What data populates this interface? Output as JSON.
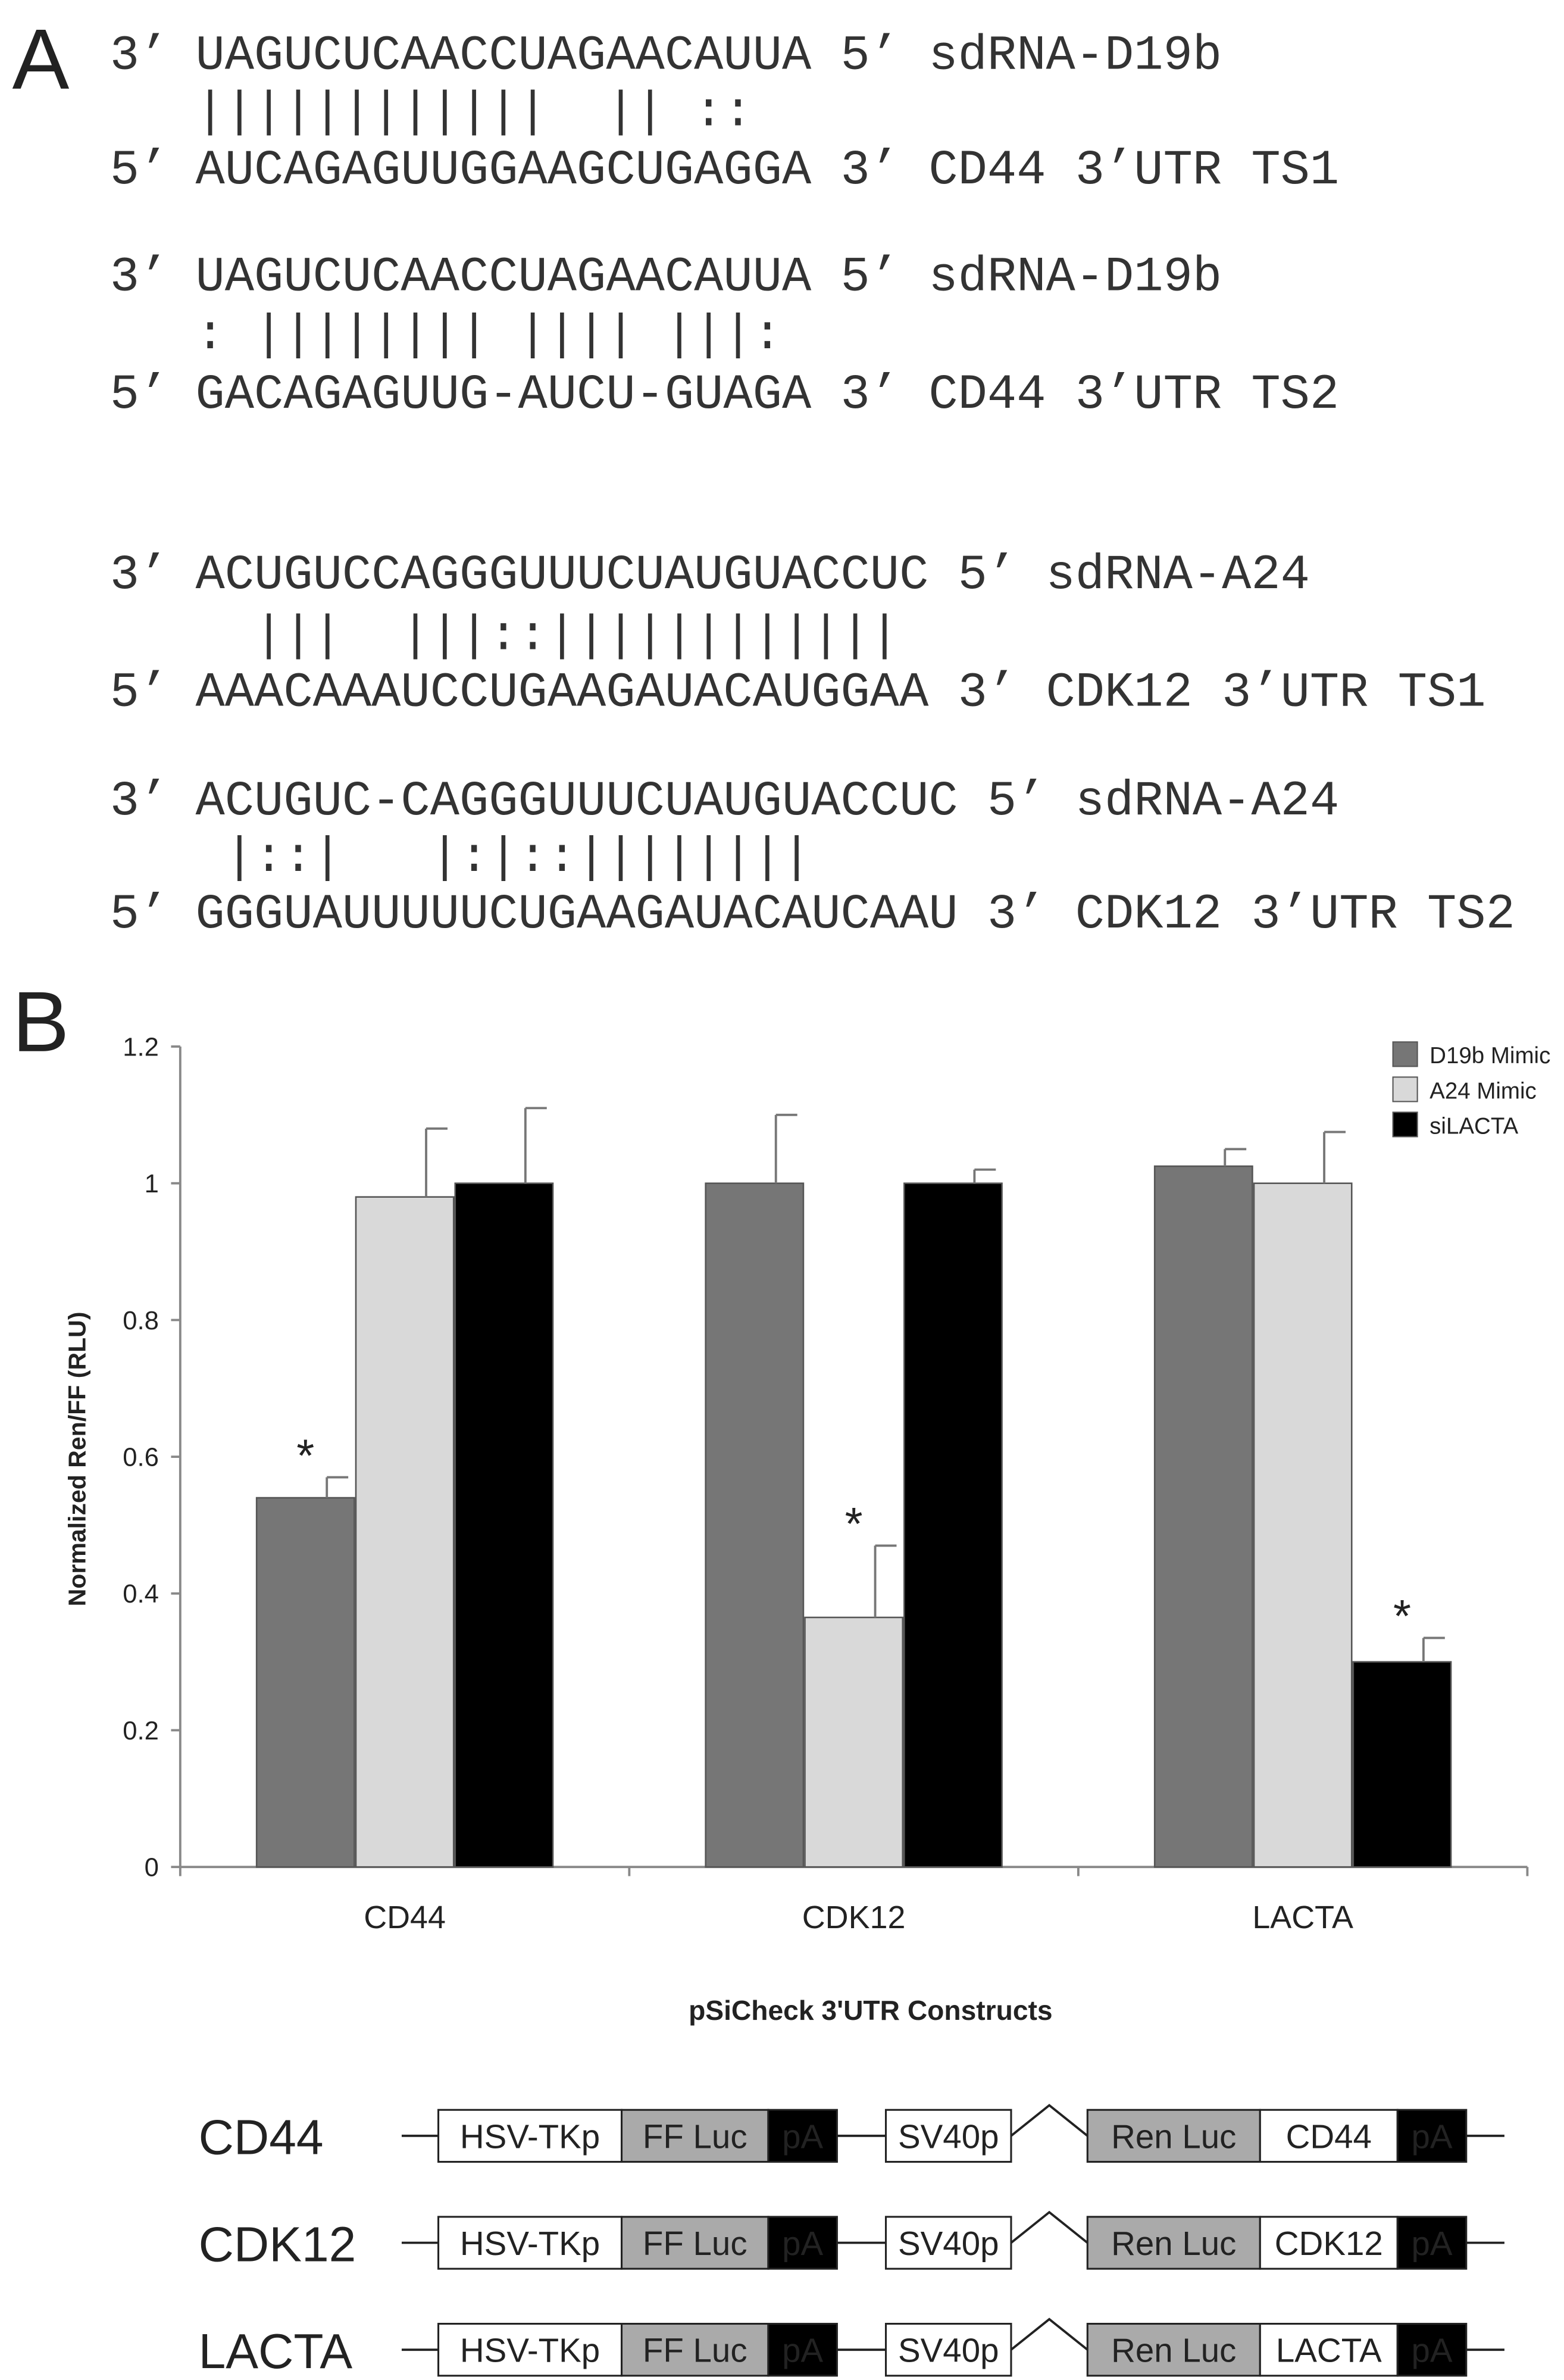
{
  "panel_a": {
    "label": "A",
    "alignments": [
      {
        "top_left": "3’",
        "top_seq": "UAGUCUCAACCUAGAACAUUA",
        "top_right": "5’",
        "top_name": "sdRNA-D19b",
        "match": "||||||||||||  || ::",
        "bottom_left": "5’",
        "bottom_seq": "AUCAGAGUUGGAAGCUGAGGA",
        "bottom_right": "3’",
        "bottom_name": "CD44 3’UTR TS1"
      },
      {
        "top_left": "3’",
        "top_seq": "UAGUCUCAACCUAGAACAUUA",
        "top_right": "5’",
        "top_name": "sdRNA-D19b",
        "match": ": |||||||| |||| |||:",
        "bottom_left": "5’",
        "bottom_seq": "GACAGAGUUG-AUCU-GUAGA",
        "bottom_right": "3’",
        "bottom_name": "CD44 3’UTR TS2"
      },
      {
        "top_left": "3’",
        "top_seq": "ACUGUCCAGGGUUUCUAUGUACCUC",
        "top_right": "5’",
        "top_name": "sdRNA-A24",
        "match": "  |||  |||::||||||||||||",
        "bottom_left": "5’",
        "bottom_seq": "AAACAAAUCCUGAAGAUACAUGGAA",
        "bottom_right": "3’",
        "bottom_name": "CDK12 3’UTR TS1"
      },
      {
        "top_left": "3’",
        "top_seq": "ACUGUC-CAGGGUUUCUAUGUACCUC",
        "top_right": "5’",
        "top_name": "sdRNA-A24",
        "match": " |::|   |:|::||||||||",
        "bottom_left": "5’",
        "bottom_seq": "GGGUAUUUUUCUGAAGAUACAUCAAU",
        "bottom_right": "3’",
        "bottom_name": "CDK12 3’UTR TS2"
      }
    ]
  },
  "panel_b_label": "B",
  "chart_data": {
    "type": "bar",
    "y_label": "Normalized Ren/FF (RLU)",
    "x_label": "pSiCheck 3'UTR Constructs",
    "categories": [
      "CD44",
      "CDK12",
      "LACTA"
    ],
    "series": [
      {
        "name": "D19b Mimic",
        "color": "#767676",
        "values": [
          0.54,
          1.0,
          1.025
        ],
        "errors": [
          0.03,
          0.1,
          0.025
        ]
      },
      {
        "name": "A24 Mimic",
        "color": "#d9d9d9",
        "values": [
          0.98,
          0.365,
          1.0
        ],
        "errors": [
          0.1,
          0.105,
          0.075
        ]
      },
      {
        "name": "siLACTA",
        "color": "#000000",
        "values": [
          1.0,
          1.0,
          0.3
        ],
        "errors": [
          0.11,
          0.02,
          0.035
        ]
      }
    ],
    "annotations": [
      {
        "text": "*",
        "category": "CD44",
        "series": "D19b Mimic"
      },
      {
        "text": "*",
        "category": "CDK12",
        "series": "A24 Mimic"
      },
      {
        "text": "*",
        "category": "LACTA",
        "series": "siLACTA"
      }
    ],
    "ylim": [
      0,
      1.2
    ],
    "yticks": [
      0,
      0.2,
      0.4,
      0.6,
      0.8,
      1,
      1.2
    ],
    "legend": "top-right"
  },
  "constructs": [
    {
      "name": "CD44",
      "parts": [
        "HSV-TKp",
        "FF Luc",
        "pA",
        "SV40p",
        "Ren Luc",
        "CD44",
        "pA"
      ]
    },
    {
      "name": "CDK12",
      "parts": [
        "HSV-TKp",
        "FF Luc",
        "pA",
        "SV40p",
        "Ren Luc",
        "CDK12",
        "pA"
      ]
    },
    {
      "name": "LACTA",
      "parts": [
        "HSV-TKp",
        "FF Luc",
        "pA",
        "SV40p",
        "Ren Luc",
        "LACTA",
        "pA"
      ]
    }
  ]
}
